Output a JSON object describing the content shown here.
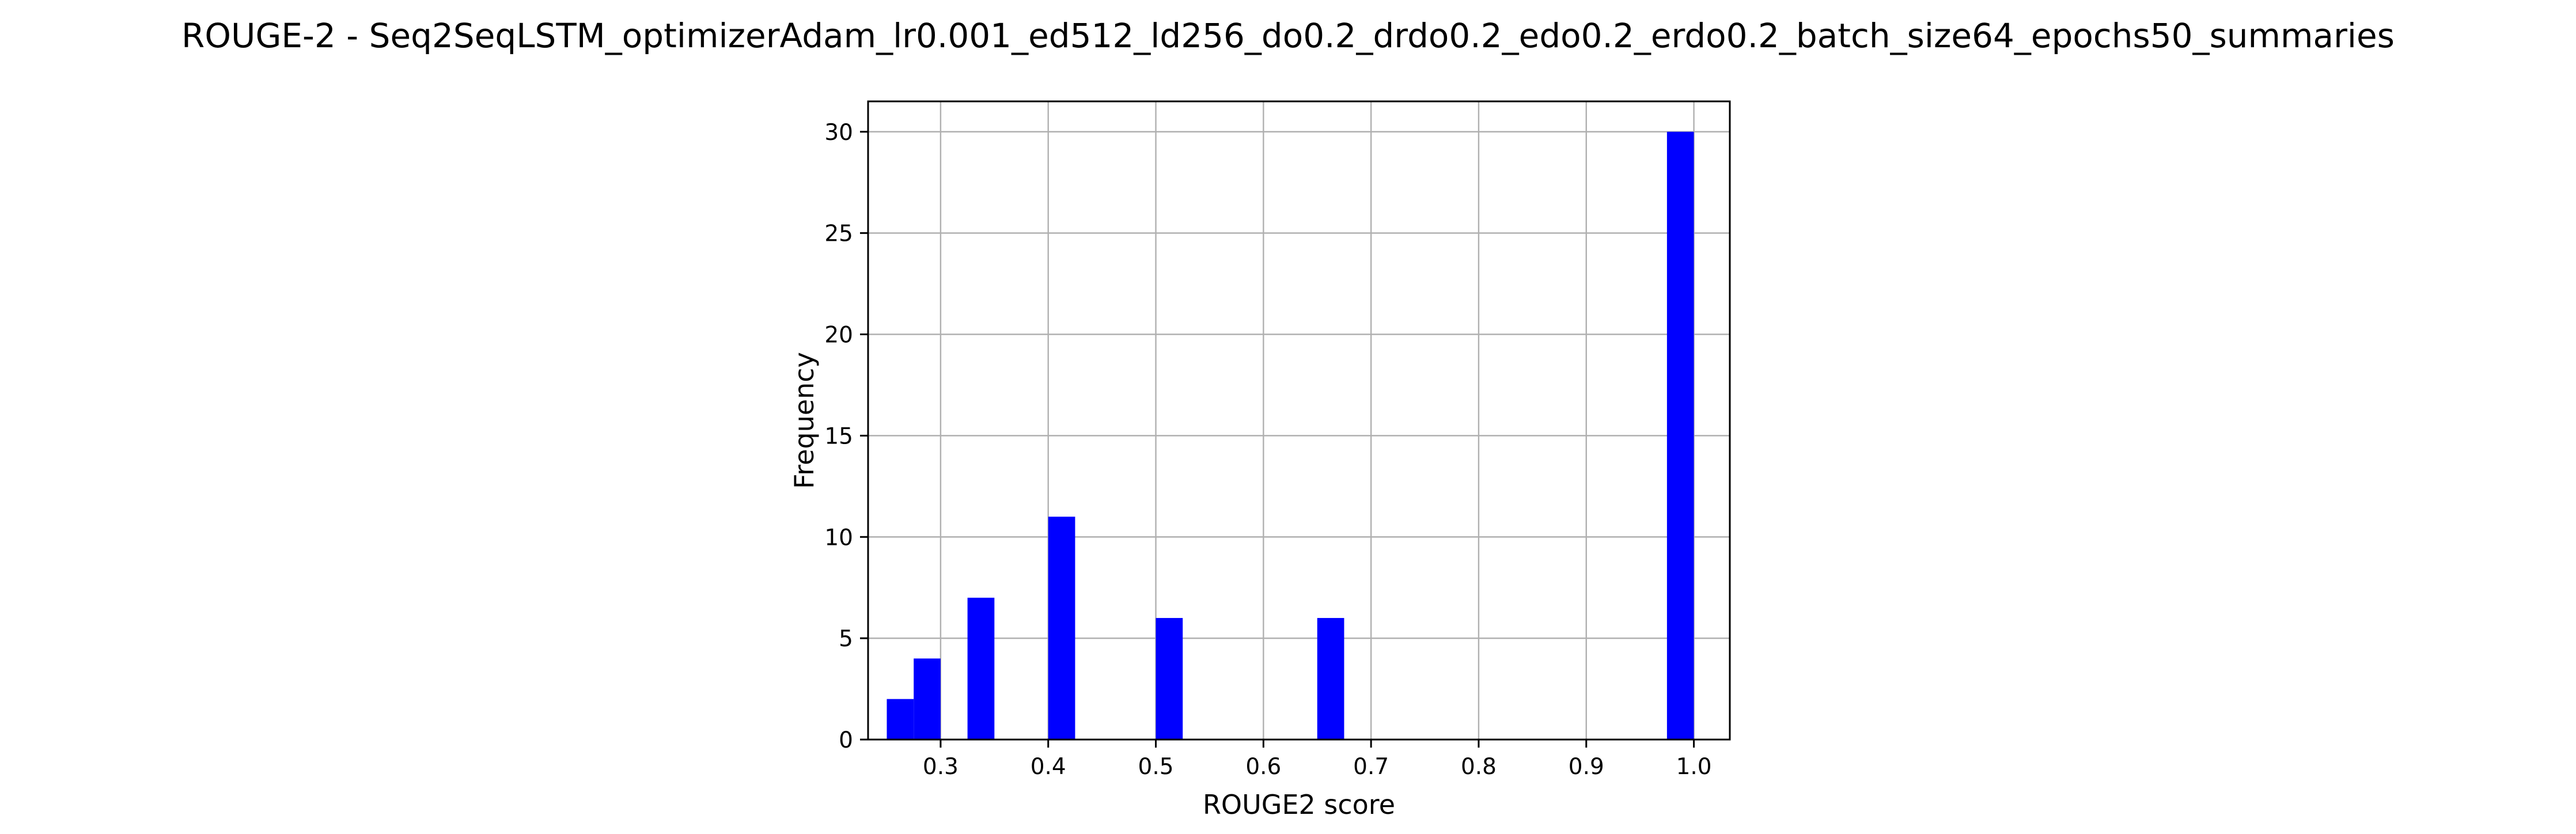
{
  "chart_data": {
    "type": "bar",
    "title": "ROUGE-2 - Seq2SeqLSTM_optimizerAdam_lr0.001_ed512_ld256_do0.2_drdo0.2_edo0.2_erdo0.2_batch_size64_epochs50_summaries",
    "xlabel": "ROUGE2 score",
    "ylabel": "Frequency",
    "xlim": [
      0.2326,
      1.0334
    ],
    "ylim": [
      0,
      31.5
    ],
    "xticks": [
      0.3,
      0.4,
      0.5,
      0.6,
      0.7,
      0.8,
      0.9,
      1.0
    ],
    "xtick_labels": [
      "0.3",
      "0.4",
      "0.5",
      "0.6",
      "0.7",
      "0.8",
      "0.9",
      "1.0"
    ],
    "yticks": [
      0,
      5,
      10,
      15,
      20,
      25,
      30
    ],
    "ytick_labels": [
      "0",
      "5",
      "10",
      "15",
      "20",
      "25",
      "30"
    ],
    "grid": true,
    "bar_color": "#0000ff",
    "bars": [
      {
        "x0": 0.25,
        "x1": 0.275,
        "value": 2
      },
      {
        "x0": 0.275,
        "x1": 0.3,
        "value": 4
      },
      {
        "x0": 0.325,
        "x1": 0.35,
        "value": 7
      },
      {
        "x0": 0.4,
        "x1": 0.425,
        "value": 11
      },
      {
        "x0": 0.5,
        "x1": 0.525,
        "value": 6
      },
      {
        "x0": 0.65,
        "x1": 0.675,
        "value": 6
      },
      {
        "x0": 0.975,
        "x1": 1.0,
        "value": 30
      }
    ]
  }
}
